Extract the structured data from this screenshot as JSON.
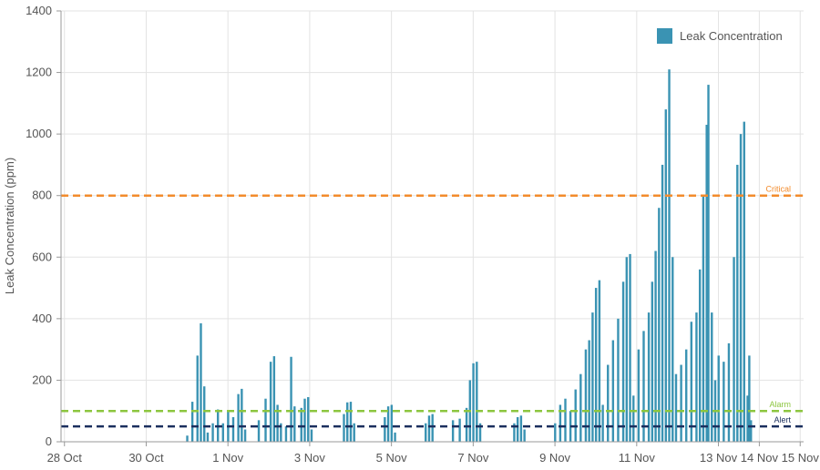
{
  "chart_data": {
    "type": "bar",
    "title": "",
    "xlabel": "",
    "ylabel": "Leak Concentration (ppm)",
    "ylim": [
      0,
      1400
    ],
    "xlim": [
      "2023-10-27T22:00",
      "2023-11-15T02:00"
    ],
    "x_ticks": [
      {
        "date": "2023-10-28",
        "label": "28 Oct"
      },
      {
        "date": "2023-10-30",
        "label": "30 Oct"
      },
      {
        "date": "2023-11-01",
        "label": "1 Nov"
      },
      {
        "date": "2023-11-03",
        "label": "3 Nov"
      },
      {
        "date": "2023-11-05",
        "label": "5 Nov"
      },
      {
        "date": "2023-11-07",
        "label": "7 Nov"
      },
      {
        "date": "2023-11-09",
        "label": "9 Nov"
      },
      {
        "date": "2023-11-11",
        "label": "11 Nov"
      },
      {
        "date": "2023-11-13",
        "label": "13 Nov"
      },
      {
        "date": "2023-11-14",
        "label": "14 Nov"
      },
      {
        "date": "2023-11-15",
        "label": "15 Nov"
      }
    ],
    "y_ticks": [
      0,
      200,
      400,
      600,
      800,
      1000,
      1200,
      1400
    ],
    "grid": true,
    "legend_position": "top-right",
    "series": [
      {
        "name": "Leak Concentration",
        "color": "#3a93b3",
        "points": [
          [
            "2023-10-31T00:00",
            20
          ],
          [
            "2023-10-31T03:00",
            130
          ],
          [
            "2023-10-31T06:00",
            280
          ],
          [
            "2023-10-31T08:00",
            385
          ],
          [
            "2023-10-31T10:00",
            180
          ],
          [
            "2023-10-31T12:00",
            30
          ],
          [
            "2023-10-31T15:00",
            60
          ],
          [
            "2023-10-31T18:00",
            105
          ],
          [
            "2023-10-31T21:00",
            60
          ],
          [
            "2023-11-01T00:00",
            100
          ],
          [
            "2023-11-01T03:00",
            80
          ],
          [
            "2023-11-01T06:00",
            155
          ],
          [
            "2023-11-01T08:00",
            172
          ],
          [
            "2023-11-01T10:00",
            40
          ],
          [
            "2023-11-01T18:00",
            70
          ],
          [
            "2023-11-01T22:00",
            140
          ],
          [
            "2023-11-02T01:00",
            260
          ],
          [
            "2023-11-02T03:00",
            278
          ],
          [
            "2023-11-02T05:00",
            120
          ],
          [
            "2023-11-02T07:00",
            60
          ],
          [
            "2023-11-02T10:00",
            50
          ],
          [
            "2023-11-02T13:00",
            276
          ],
          [
            "2023-11-02T15:00",
            115
          ],
          [
            "2023-11-02T19:00",
            110
          ],
          [
            "2023-11-02T21:00",
            140
          ],
          [
            "2023-11-02T23:00",
            145
          ],
          [
            "2023-11-03T01:00",
            40
          ],
          [
            "2023-11-03T20:00",
            90
          ],
          [
            "2023-11-03T22:00",
            128
          ],
          [
            "2023-11-04T00:00",
            130
          ],
          [
            "2023-11-04T02:00",
            60
          ],
          [
            "2023-11-04T20:00",
            80
          ],
          [
            "2023-11-04T22:00",
            115
          ],
          [
            "2023-11-05T00:00",
            120
          ],
          [
            "2023-11-05T02:00",
            30
          ],
          [
            "2023-11-05T20:00",
            60
          ],
          [
            "2023-11-05T22:00",
            85
          ],
          [
            "2023-11-06T00:00",
            90
          ],
          [
            "2023-11-06T12:00",
            70
          ],
          [
            "2023-11-06T16:00",
            75
          ],
          [
            "2023-11-06T20:00",
            110
          ],
          [
            "2023-11-06T22:00",
            200
          ],
          [
            "2023-11-07T00:00",
            255
          ],
          [
            "2023-11-07T02:00",
            260
          ],
          [
            "2023-11-07T04:00",
            60
          ],
          [
            "2023-11-08T00:00",
            60
          ],
          [
            "2023-11-08T02:00",
            80
          ],
          [
            "2023-11-08T04:00",
            85
          ],
          [
            "2023-11-08T06:00",
            40
          ],
          [
            "2023-11-09T00:00",
            60
          ],
          [
            "2023-11-09T03:00",
            120
          ],
          [
            "2023-11-09T06:00",
            140
          ],
          [
            "2023-11-09T09:00",
            100
          ],
          [
            "2023-11-09T12:00",
            170
          ],
          [
            "2023-11-09T15:00",
            220
          ],
          [
            "2023-11-09T18:00",
            300
          ],
          [
            "2023-11-09T20:00",
            330
          ],
          [
            "2023-11-09T22:00",
            420
          ],
          [
            "2023-11-10T00:00",
            500
          ],
          [
            "2023-11-10T02:00",
            525
          ],
          [
            "2023-11-10T04:00",
            120
          ],
          [
            "2023-11-10T07:00",
            250
          ],
          [
            "2023-11-10T10:00",
            330
          ],
          [
            "2023-11-10T13:00",
            400
          ],
          [
            "2023-11-10T16:00",
            520
          ],
          [
            "2023-11-10T18:00",
            600
          ],
          [
            "2023-11-10T20:00",
            610
          ],
          [
            "2023-11-10T22:00",
            150
          ],
          [
            "2023-11-11T01:00",
            300
          ],
          [
            "2023-11-11T04:00",
            360
          ],
          [
            "2023-11-11T07:00",
            420
          ],
          [
            "2023-11-11T09:00",
            520
          ],
          [
            "2023-11-11T11:00",
            620
          ],
          [
            "2023-11-11T13:00",
            760
          ],
          [
            "2023-11-11T15:00",
            900
          ],
          [
            "2023-11-11T17:00",
            1080
          ],
          [
            "2023-11-11T19:00",
            1210
          ],
          [
            "2023-11-11T21:00",
            600
          ],
          [
            "2023-11-11T23:00",
            220
          ],
          [
            "2023-11-12T02:00",
            250
          ],
          [
            "2023-11-12T05:00",
            300
          ],
          [
            "2023-11-12T08:00",
            390
          ],
          [
            "2023-11-12T11:00",
            420
          ],
          [
            "2023-11-12T13:00",
            560
          ],
          [
            "2023-11-12T15:00",
            800
          ],
          [
            "2023-11-12T17:00",
            1030
          ],
          [
            "2023-11-12T18:00",
            1160
          ],
          [
            "2023-11-12T20:00",
            420
          ],
          [
            "2023-11-12T22:00",
            200
          ],
          [
            "2023-11-13T00:00",
            280
          ],
          [
            "2023-11-13T03:00",
            260
          ],
          [
            "2023-11-13T06:00",
            320
          ],
          [
            "2023-11-13T09:00",
            600
          ],
          [
            "2023-11-13T11:00",
            900
          ],
          [
            "2023-11-13T13:00",
            1000
          ],
          [
            "2023-11-13T15:00",
            1040
          ],
          [
            "2023-11-13T17:00",
            150
          ],
          [
            "2023-11-13T18:00",
            280
          ],
          [
            "2023-11-13T19:00",
            70
          ]
        ]
      }
    ],
    "thresholds": [
      {
        "name": "Critical",
        "value": 800,
        "color": "#f28b2c"
      },
      {
        "name": "Alarm",
        "value": 100,
        "color": "#8cc63f"
      },
      {
        "name": "Alert",
        "value": 50,
        "color": "#1b2f5e"
      }
    ]
  }
}
